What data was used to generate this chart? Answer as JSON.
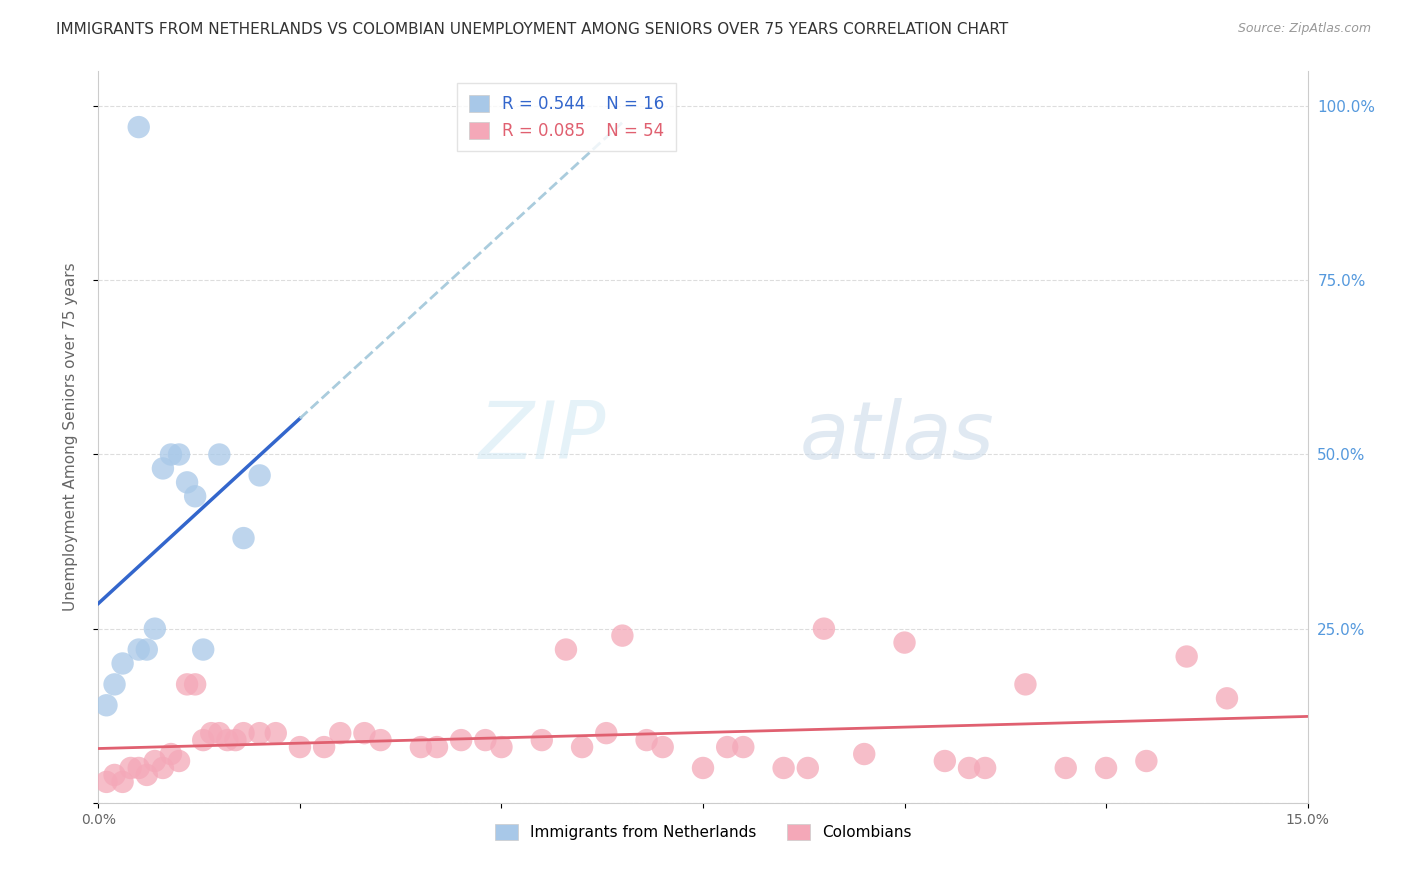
{
  "title": "IMMIGRANTS FROM NETHERLANDS VS COLOMBIAN UNEMPLOYMENT AMONG SENIORS OVER 75 YEARS CORRELATION CHART",
  "source": "Source: ZipAtlas.com",
  "ylabel": "Unemployment Among Seniors over 75 years",
  "legend_label1": "Immigrants from Netherlands",
  "legend_label2": "Colombians",
  "R1": "R = 0.544",
  "N1": "N = 16",
  "R2": "R = 0.085",
  "N2": "N = 54",
  "color_blue": "#a8c8e8",
  "color_pink": "#f4a8b8",
  "line_blue": "#3366cc",
  "line_pink": "#e06070",
  "diag_line_color": "#aaccdd",
  "watermark_zip": "ZIP",
  "watermark_atlas": "atlas",
  "background_color": "#ffffff",
  "blue_x": [
    0.001,
    0.002,
    0.003,
    0.005,
    0.006,
    0.007,
    0.008,
    0.009,
    0.01,
    0.011,
    0.012,
    0.013,
    0.015,
    0.018,
    0.02,
    0.005
  ],
  "blue_y": [
    0.14,
    0.17,
    0.2,
    0.22,
    0.22,
    0.25,
    0.48,
    0.5,
    0.5,
    0.46,
    0.44,
    0.22,
    0.5,
    0.38,
    0.47,
    0.97
  ],
  "pink_x": [
    0.001,
    0.002,
    0.003,
    0.004,
    0.005,
    0.006,
    0.007,
    0.008,
    0.009,
    0.01,
    0.011,
    0.012,
    0.013,
    0.014,
    0.015,
    0.016,
    0.017,
    0.018,
    0.02,
    0.022,
    0.025,
    0.028,
    0.03,
    0.033,
    0.035,
    0.04,
    0.042,
    0.045,
    0.048,
    0.05,
    0.055,
    0.058,
    0.06,
    0.063,
    0.065,
    0.068,
    0.07,
    0.075,
    0.078,
    0.08,
    0.085,
    0.088,
    0.09,
    0.095,
    0.1,
    0.105,
    0.108,
    0.11,
    0.115,
    0.12,
    0.125,
    0.13,
    0.135,
    0.14
  ],
  "pink_y": [
    0.03,
    0.04,
    0.03,
    0.05,
    0.05,
    0.04,
    0.06,
    0.05,
    0.07,
    0.06,
    0.17,
    0.17,
    0.09,
    0.1,
    0.1,
    0.09,
    0.09,
    0.1,
    0.1,
    0.1,
    0.08,
    0.08,
    0.1,
    0.1,
    0.09,
    0.08,
    0.08,
    0.09,
    0.09,
    0.08,
    0.09,
    0.22,
    0.08,
    0.1,
    0.24,
    0.09,
    0.08,
    0.05,
    0.08,
    0.08,
    0.05,
    0.05,
    0.25,
    0.07,
    0.23,
    0.06,
    0.05,
    0.05,
    0.17,
    0.05,
    0.05,
    0.06,
    0.21,
    0.15
  ],
  "xlim": [
    0.0,
    0.15
  ],
  "ylim": [
    0.0,
    1.05
  ],
  "ytick_positions": [
    0.0,
    0.25,
    0.5,
    0.75,
    1.0
  ],
  "ytick_labels_right": [
    "",
    "25.0%",
    "50.0%",
    "75.0%",
    "100.0%"
  ],
  "xtick_positions": [
    0.0,
    0.025,
    0.05,
    0.075,
    0.1,
    0.125,
    0.15
  ],
  "xtick_labels": [
    "0.0%",
    "",
    "",
    "",
    "",
    "",
    "15.0%"
  ]
}
